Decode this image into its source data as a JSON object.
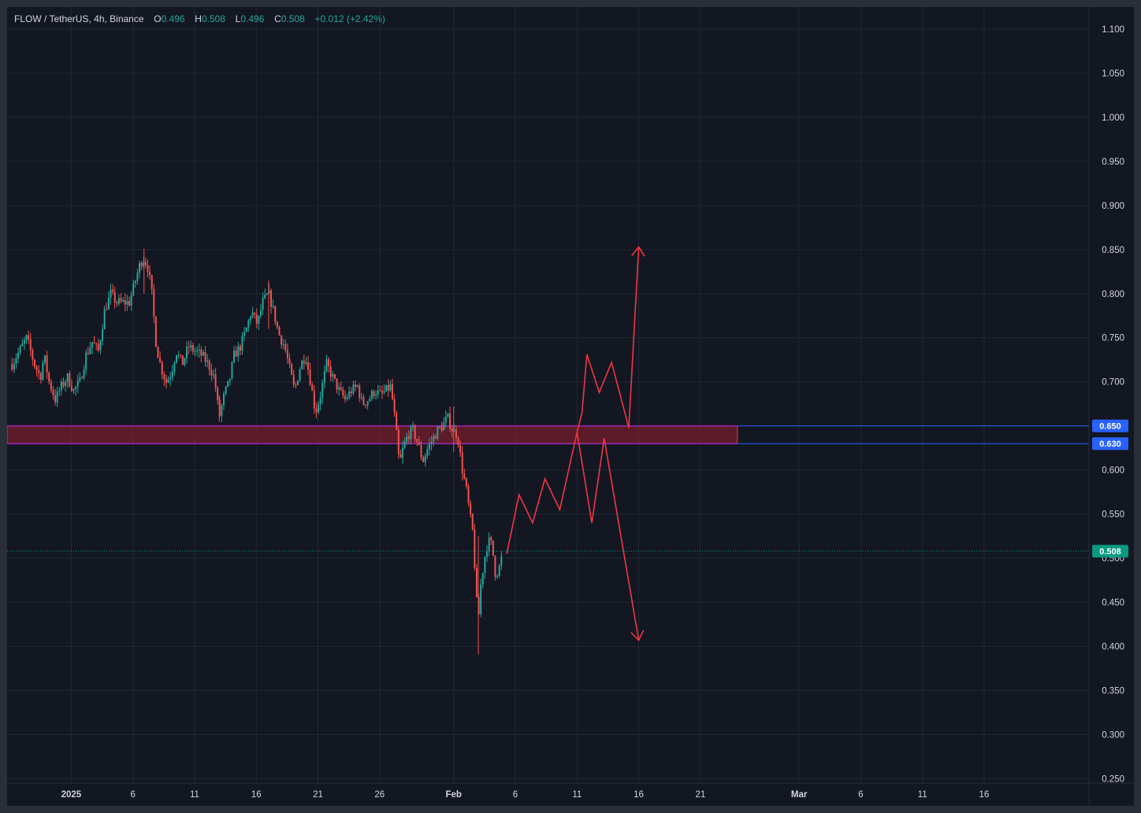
{
  "header": {
    "symbol": "FLOW / TetherUS, 4h, Binance",
    "open_label": "O",
    "open": "0.496",
    "high_label": "H",
    "high": "0.508",
    "low_label": "L",
    "low": "0.496",
    "close_label": "C",
    "close": "0.508",
    "change": "+0.012 (+2.42%)"
  },
  "colors": {
    "background": "#131722",
    "grid": "#232733",
    "up": "#26a69a",
    "down": "#ef5350",
    "zone_fill": "#7a1e2c",
    "zone_border": "#9c27b0",
    "level_line": "#2962ff",
    "drawing": "#f23645",
    "price_badge": "#089981",
    "level_badge": "#2962ff"
  },
  "chart_data": {
    "type": "candlestick",
    "title": "FLOW / TetherUS, 4h, Binance",
    "timeframe": "4h",
    "y_axis": {
      "range": [
        0.245,
        1.125
      ],
      "ticks": [
        "1.100",
        "1.050",
        "1.000",
        "0.950",
        "0.900",
        "0.850",
        "0.800",
        "0.750",
        "0.700",
        "0.650",
        "0.600",
        "0.550",
        "0.500",
        "0.450",
        "0.400",
        "0.350",
        "0.300",
        "0.250"
      ]
    },
    "x_axis": {
      "range_days": [
        -5.2,
        82.5
      ],
      "day_zero": "2025-01-01",
      "ticks": [
        {
          "label": "2025",
          "day": 0
        },
        {
          "label": "6",
          "day": 5
        },
        {
          "label": "11",
          "day": 10
        },
        {
          "label": "16",
          "day": 15
        },
        {
          "label": "21",
          "day": 20
        },
        {
          "label": "26",
          "day": 25
        },
        {
          "label": "Feb",
          "day": 31
        },
        {
          "label": "6",
          "day": 36
        },
        {
          "label": "11",
          "day": 41
        },
        {
          "label": "16",
          "day": 46
        },
        {
          "label": "21",
          "day": 51
        },
        {
          "label": "Mar",
          "day": 59
        },
        {
          "label": "6",
          "day": 64
        },
        {
          "label": "11",
          "day": 69
        },
        {
          "label": "16",
          "day": 74
        }
      ]
    },
    "price_path": [
      [
        -4.8,
        0.72
      ],
      [
        -4.2,
        0.735
      ],
      [
        -3.6,
        0.75
      ],
      [
        -3.0,
        0.72
      ],
      [
        -2.5,
        0.705
      ],
      [
        -2.2,
        0.73
      ],
      [
        -1.8,
        0.7
      ],
      [
        -1.3,
        0.68
      ],
      [
        -0.8,
        0.695
      ],
      [
        -0.3,
        0.705
      ],
      [
        0.2,
        0.69
      ],
      [
        0.7,
        0.7
      ],
      [
        1.2,
        0.73
      ],
      [
        1.7,
        0.745
      ],
      [
        2.2,
        0.735
      ],
      [
        2.7,
        0.78
      ],
      [
        3.2,
        0.8
      ],
      [
        3.7,
        0.79
      ],
      [
        4.2,
        0.79
      ],
      [
        4.7,
        0.79
      ],
      [
        5.1,
        0.81
      ],
      [
        5.6,
        0.835
      ],
      [
        5.9,
        0.84
      ],
      [
        6.2,
        0.83
      ],
      [
        6.5,
        0.805
      ],
      [
        6.9,
        0.74
      ],
      [
        7.3,
        0.715
      ],
      [
        7.7,
        0.7
      ],
      [
        8.1,
        0.71
      ],
      [
        8.5,
        0.735
      ],
      [
        9.0,
        0.72
      ],
      [
        9.5,
        0.74
      ],
      [
        10.0,
        0.735
      ],
      [
        10.6,
        0.73
      ],
      [
        11.1,
        0.72
      ],
      [
        11.6,
        0.705
      ],
      [
        12.0,
        0.66
      ],
      [
        12.4,
        0.685
      ],
      [
        12.8,
        0.7
      ],
      [
        13.2,
        0.73
      ],
      [
        13.7,
        0.74
      ],
      [
        14.2,
        0.76
      ],
      [
        14.6,
        0.78
      ],
      [
        15.1,
        0.765
      ],
      [
        15.5,
        0.79
      ],
      [
        16.0,
        0.8
      ],
      [
        16.4,
        0.78
      ],
      [
        16.8,
        0.755
      ],
      [
        17.3,
        0.74
      ],
      [
        17.7,
        0.715
      ],
      [
        18.1,
        0.69
      ],
      [
        18.6,
        0.72
      ],
      [
        19.0,
        0.73
      ],
      [
        19.4,
        0.7
      ],
      [
        19.8,
        0.665
      ],
      [
        20.2,
        0.685
      ],
      [
        20.7,
        0.72
      ],
      [
        21.2,
        0.705
      ],
      [
        21.7,
        0.69
      ],
      [
        22.2,
        0.68
      ],
      [
        22.7,
        0.69
      ],
      [
        23.2,
        0.695
      ],
      [
        23.6,
        0.675
      ],
      [
        24.1,
        0.68
      ],
      [
        24.6,
        0.69
      ],
      [
        25.1,
        0.685
      ],
      [
        25.5,
        0.69
      ],
      [
        25.9,
        0.695
      ],
      [
        26.3,
        0.65
      ],
      [
        26.6,
        0.605
      ],
      [
        26.9,
        0.625
      ],
      [
        27.3,
        0.64
      ],
      [
        27.7,
        0.645
      ],
      [
        28.1,
        0.63
      ],
      [
        28.5,
        0.61
      ],
      [
        28.9,
        0.625
      ],
      [
        29.3,
        0.635
      ],
      [
        29.7,
        0.645
      ],
      [
        30.1,
        0.65
      ],
      [
        30.5,
        0.66
      ],
      [
        30.9,
        0.645
      ],
      [
        31.3,
        0.64
      ],
      [
        31.7,
        0.6
      ],
      [
        32.0,
        0.58
      ],
      [
        32.3,
        0.55
      ],
      [
        32.6,
        0.525
      ],
      [
        32.8,
        0.46
      ],
      [
        33.0,
        0.43
      ],
      [
        33.2,
        0.47
      ],
      [
        33.5,
        0.5
      ],
      [
        33.8,
        0.52
      ],
      [
        34.1,
        0.515
      ],
      [
        34.4,
        0.48
      ],
      [
        34.7,
        0.49
      ],
      [
        35.0,
        0.508
      ]
    ],
    "extra_wicks": [
      {
        "day": 33.0,
        "low": 0.391,
        "high": 0.525
      },
      {
        "day": 5.9,
        "low": 0.8,
        "high": 0.851
      },
      {
        "day": 16.0,
        "low": 0.76,
        "high": 0.815
      },
      {
        "day": 12.0,
        "low": 0.655,
        "high": 0.685
      },
      {
        "day": 31.0,
        "low": 0.62,
        "high": 0.672
      }
    ],
    "zone": {
      "top": 0.65,
      "bottom": 0.63,
      "start_day": -5.2,
      "end_day": 54
    },
    "levels": [
      {
        "price": 0.65,
        "label": "0.650"
      },
      {
        "price": 0.63,
        "label": "0.630"
      }
    ],
    "current_price": {
      "price": 0.508,
      "label": "0.508"
    },
    "projection": {
      "common": [
        [
          35.3,
          0.505
        ],
        [
          36.3,
          0.572
        ],
        [
          37.4,
          0.54
        ],
        [
          38.4,
          0.59
        ],
        [
          39.6,
          0.555
        ],
        [
          41.0,
          0.643
        ],
        [
          41.4,
          0.665
        ]
      ],
      "bullish": [
        [
          41.4,
          0.665
        ],
        [
          41.8,
          0.731
        ],
        [
          42.8,
          0.688
        ],
        [
          43.8,
          0.722
        ],
        [
          45.2,
          0.648
        ],
        [
          46.0,
          0.853
        ]
      ],
      "bearish": [
        [
          41.0,
          0.643
        ],
        [
          42.2,
          0.54
        ],
        [
          43.2,
          0.636
        ],
        [
          46.0,
          0.407
        ]
      ]
    }
  }
}
